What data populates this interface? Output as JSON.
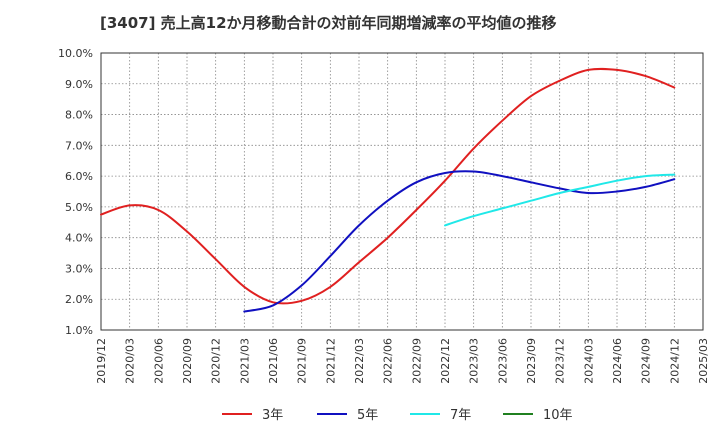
{
  "chart_data": {
    "type": "line",
    "title": "[3407]  売上高12か月移動合計の対前年同期増減率の平均値の推移",
    "x_ticks": [
      "2019/12",
      "2020/03",
      "2020/06",
      "2020/09",
      "2020/12",
      "2021/03",
      "2021/06",
      "2021/09",
      "2021/12",
      "2022/03",
      "2022/06",
      "2022/09",
      "2022/12",
      "2023/03",
      "2023/06",
      "2023/09",
      "2023/12",
      "2024/03",
      "2024/06",
      "2024/09",
      "2024/12",
      "2025/03"
    ],
    "y_ticks": [
      "1.0%",
      "2.0%",
      "3.0%",
      "4.0%",
      "5.0%",
      "6.0%",
      "7.0%",
      "8.0%",
      "9.0%",
      "10.0%"
    ],
    "ylim": [
      1.0,
      10.0
    ],
    "grid": true,
    "legend_position": "bottom",
    "series": [
      {
        "name": "3年",
        "color": "#e02020",
        "x": [
          "2019/12",
          "2020/03",
          "2020/06",
          "2020/09",
          "2020/12",
          "2021/03",
          "2021/06",
          "2021/09",
          "2021/12",
          "2022/03",
          "2022/06",
          "2022/09",
          "2022/12",
          "2023/03",
          "2023/06",
          "2023/09",
          "2023/12",
          "2024/03",
          "2024/06",
          "2024/09",
          "2024/12"
        ],
        "values": [
          4.75,
          5.05,
          4.9,
          4.2,
          3.3,
          2.4,
          1.9,
          1.95,
          2.4,
          3.2,
          4.0,
          4.9,
          5.85,
          6.9,
          7.8,
          8.6,
          9.1,
          9.45,
          9.45,
          9.25,
          8.88
        ]
      },
      {
        "name": "5年",
        "color": "#1010c0",
        "x": [
          "2021/03",
          "2021/06",
          "2021/09",
          "2021/12",
          "2022/03",
          "2022/06",
          "2022/09",
          "2022/12",
          "2023/03",
          "2023/06",
          "2023/09",
          "2023/12",
          "2024/03",
          "2024/06",
          "2024/09",
          "2024/12"
        ],
        "values": [
          1.6,
          1.8,
          2.45,
          3.4,
          4.4,
          5.2,
          5.8,
          6.1,
          6.15,
          6.0,
          5.8,
          5.6,
          5.45,
          5.5,
          5.65,
          5.9
        ]
      },
      {
        "name": "7年",
        "color": "#20e8e8",
        "x": [
          "2022/12",
          "2023/03",
          "2023/06",
          "2023/09",
          "2023/12",
          "2024/03",
          "2024/06",
          "2024/09",
          "2024/12"
        ],
        "values": [
          4.4,
          4.7,
          4.95,
          5.2,
          5.45,
          5.65,
          5.85,
          6.0,
          6.05
        ]
      },
      {
        "name": "10年",
        "color": "#208020",
        "x": [],
        "values": []
      }
    ]
  }
}
